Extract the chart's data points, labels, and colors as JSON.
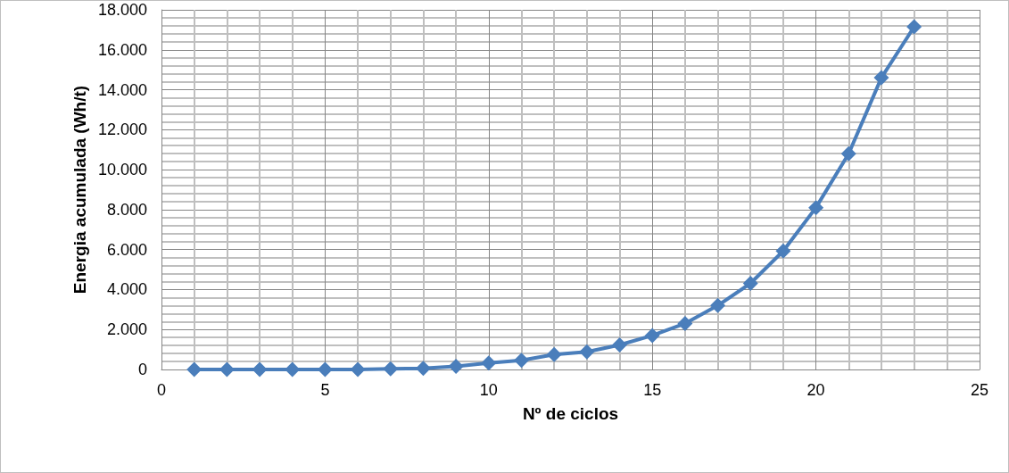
{
  "chart_data": {
    "type": "line",
    "xlabel": "Nº de ciclos",
    "ylabel": "Energia acumulada (Wh/t)",
    "x": [
      1,
      2,
      3,
      4,
      5,
      6,
      7,
      8,
      9,
      10,
      11,
      12,
      13,
      14,
      15,
      16,
      17,
      18,
      19,
      20,
      21,
      22,
      23
    ],
    "series": [
      {
        "color": "#4a7ebb",
        "values": [
          0,
          0,
          0,
          0,
          0,
          0,
          30,
          60,
          160,
          320,
          460,
          750,
          880,
          1230,
          1700,
          2300,
          3200,
          4310,
          5930,
          8100,
          10800,
          14600,
          17150
        ]
      }
    ],
    "xlim": [
      0,
      25
    ],
    "xticks": [
      0,
      5,
      10,
      15,
      20,
      25
    ],
    "ylim": [
      0,
      18000
    ],
    "yticks": [
      0,
      {
        "value": 2000,
        "label": "2.000"
      },
      {
        "value": 4000,
        "label": "4.000"
      },
      {
        "value": 6000,
        "label": "6.000"
      },
      {
        "value": 8000,
        "label": "8.000"
      },
      {
        "value": 10000,
        "label": "10.000"
      },
      {
        "value": 12000,
        "label": "12.000"
      },
      {
        "value": 14000,
        "label": "14.000"
      },
      {
        "value": 16000,
        "label": "16.000"
      },
      {
        "value": 18000,
        "label": "18.000"
      }
    ],
    "grid": true,
    "marker": "diamond",
    "line_style": "solid"
  }
}
